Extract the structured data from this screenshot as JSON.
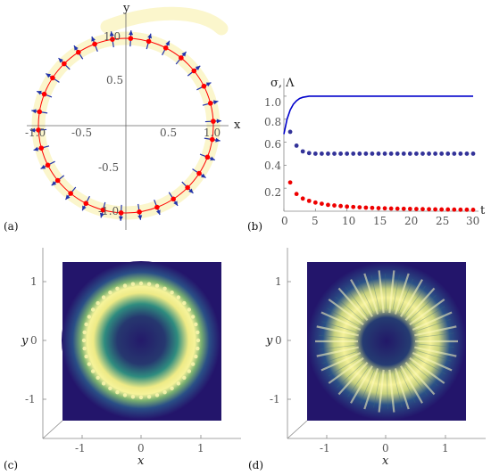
{
  "chart_data": [
    {
      "panel": "(a)",
      "type": "scatter",
      "xlabel": "x",
      "ylabel": "y",
      "xlim": [
        -1.15,
        1.15
      ],
      "ylim": [
        -1.15,
        1.15
      ],
      "x_ticks": [
        "-1.0",
        "-0.5",
        "0.5",
        "1.0"
      ],
      "y_ticks": [
        "1.0",
        "0.5",
        "-0.5",
        "-1.0"
      ],
      "ring_radius": 1.0,
      "n_points": 30,
      "colors": {
        "points": "#ff0000",
        "arrows": "#2233aa",
        "band": "#fbf6cc",
        "circle": "#ff0000"
      }
    },
    {
      "panel": "(b)",
      "type": "line",
      "ylabel": "σ, Λ",
      "xlabel": "t",
      "xlim": [
        0,
        30
      ],
      "ylim": [
        0,
        1.1
      ],
      "x_ticks": [
        "0",
        "5",
        "10",
        "15",
        "20",
        "25",
        "30"
      ],
      "y_ticks": [
        "0.2",
        "0.4",
        "0.6",
        "0.8",
        "1.0"
      ],
      "series": [
        {
          "color": "#0000cc",
          "style": "line",
          "x": [
            0,
            0.5,
            1,
            1.5,
            2,
            2.5,
            3,
            4,
            5,
            6,
            8,
            10,
            15,
            20,
            25,
            30
          ],
          "values": [
            0.67,
            0.8,
            0.88,
            0.93,
            0.96,
            0.98,
            0.99,
            1.0,
            1.0,
            1.0,
            1.0,
            1.0,
            1.0,
            1.0,
            1.0,
            1.0
          ]
        },
        {
          "color": "#333399",
          "style": "dots",
          "x": [
            1,
            2,
            3,
            4,
            5,
            6,
            7,
            8,
            9,
            10,
            11,
            12,
            13,
            14,
            15,
            16,
            17,
            18,
            19,
            20,
            21,
            22,
            23,
            24,
            25,
            26,
            27,
            28,
            29,
            30
          ],
          "values": [
            0.69,
            0.57,
            0.52,
            0.505,
            0.5,
            0.5,
            0.5,
            0.5,
            0.5,
            0.5,
            0.5,
            0.5,
            0.5,
            0.5,
            0.5,
            0.5,
            0.5,
            0.5,
            0.5,
            0.5,
            0.5,
            0.5,
            0.5,
            0.5,
            0.5,
            0.5,
            0.5,
            0.5,
            0.5,
            0.5
          ]
        },
        {
          "color": "#ee0000",
          "style": "dots",
          "x": [
            1,
            2,
            3,
            4,
            5,
            6,
            7,
            8,
            9,
            10,
            11,
            12,
            13,
            14,
            15,
            16,
            17,
            18,
            19,
            20,
            21,
            22,
            23,
            24,
            25,
            26,
            27,
            28,
            29,
            30
          ],
          "values": [
            0.25,
            0.15,
            0.11,
            0.09,
            0.075,
            0.065,
            0.055,
            0.05,
            0.045,
            0.04,
            0.037,
            0.034,
            0.031,
            0.029,
            0.027,
            0.025,
            0.023,
            0.022,
            0.021,
            0.02,
            0.019,
            0.018,
            0.017,
            0.016,
            0.015,
            0.015,
            0.014,
            0.013,
            0.013,
            0.012
          ]
        }
      ]
    },
    {
      "panel": "(c)",
      "type": "heatmap",
      "xlabel": "x",
      "ylabel": "y",
      "xlim": [
        -1.6,
        1.6
      ],
      "ylim": [
        -1.6,
        1.6
      ],
      "x_ticks": [
        "-1",
        "0",
        "1"
      ],
      "y_ticks": [
        "1",
        "0",
        "-1"
      ],
      "ring_radius": 0.95,
      "colors": {
        "low": "#2c1a6e",
        "mid": "#1f8f8a",
        "high": "#f3f08a"
      }
    },
    {
      "panel": "(d)",
      "type": "heatmap",
      "xlabel": "x",
      "ylabel": "y",
      "xlim": [
        -1.6,
        1.6
      ],
      "ylim": [
        -1.6,
        1.6
      ],
      "x_ticks": [
        "-1",
        "0",
        "1"
      ],
      "y_ticks": [
        "1",
        "0",
        "-1"
      ],
      "ring_radius": 0.8,
      "n_spokes": 30,
      "colors": {
        "low": "#2c1a6e",
        "mid": "#1f8f8a",
        "high": "#f3f08a"
      }
    }
  ]
}
